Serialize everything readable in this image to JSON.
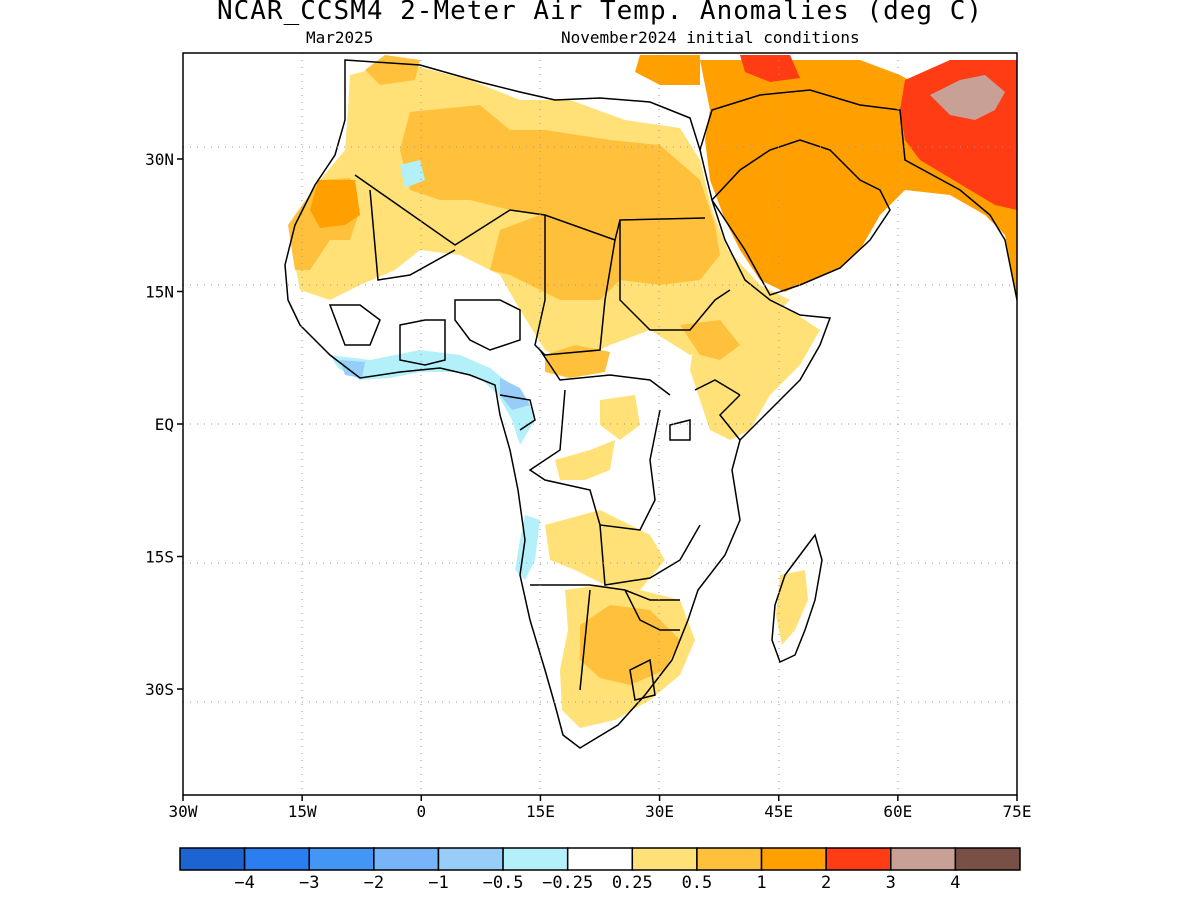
{
  "title": "NCAR_CCSM4 2-Meter Air Temp. Anomalies (deg C)",
  "subtitle_left": "Mar2025",
  "subtitle_right": "November2024 initial conditions",
  "map": {
    "lon_range": [
      -30,
      75
    ],
    "lat_range": [
      -42,
      42
    ],
    "x_ticks": [
      {
        "lon": -30,
        "label": "30W"
      },
      {
        "lon": -15,
        "label": "15W"
      },
      {
        "lon": 0,
        "label": "0"
      },
      {
        "lon": 15,
        "label": "15E"
      },
      {
        "lon": 30,
        "label": "30E"
      },
      {
        "lon": 45,
        "label": "45E"
      },
      {
        "lon": 60,
        "label": "60E"
      },
      {
        "lon": 75,
        "label": "75E"
      }
    ],
    "y_ticks": [
      {
        "lat": 30,
        "label": "30N"
      },
      {
        "lat": 15,
        "label": "15N"
      },
      {
        "lat": 0,
        "label": "EQ"
      },
      {
        "lat": -15,
        "label": "15S"
      },
      {
        "lat": -30,
        "label": "30S"
      }
    ]
  },
  "colorbar": {
    "colors": [
      "#1c64d2",
      "#2a7ef0",
      "#4496f5",
      "#78b4f8",
      "#98cdfa",
      "#b4f0fa",
      "#ffffff",
      "#ffe178",
      "#ffc03c",
      "#ffa000",
      "#ff3c14",
      "#c8a096",
      "#785046"
    ],
    "labels": [
      "-4",
      "-3",
      "-2",
      "-1",
      "-0.5",
      "-0.25",
      "0.25",
      "0.5",
      "1",
      "2",
      "3",
      "4"
    ]
  }
}
